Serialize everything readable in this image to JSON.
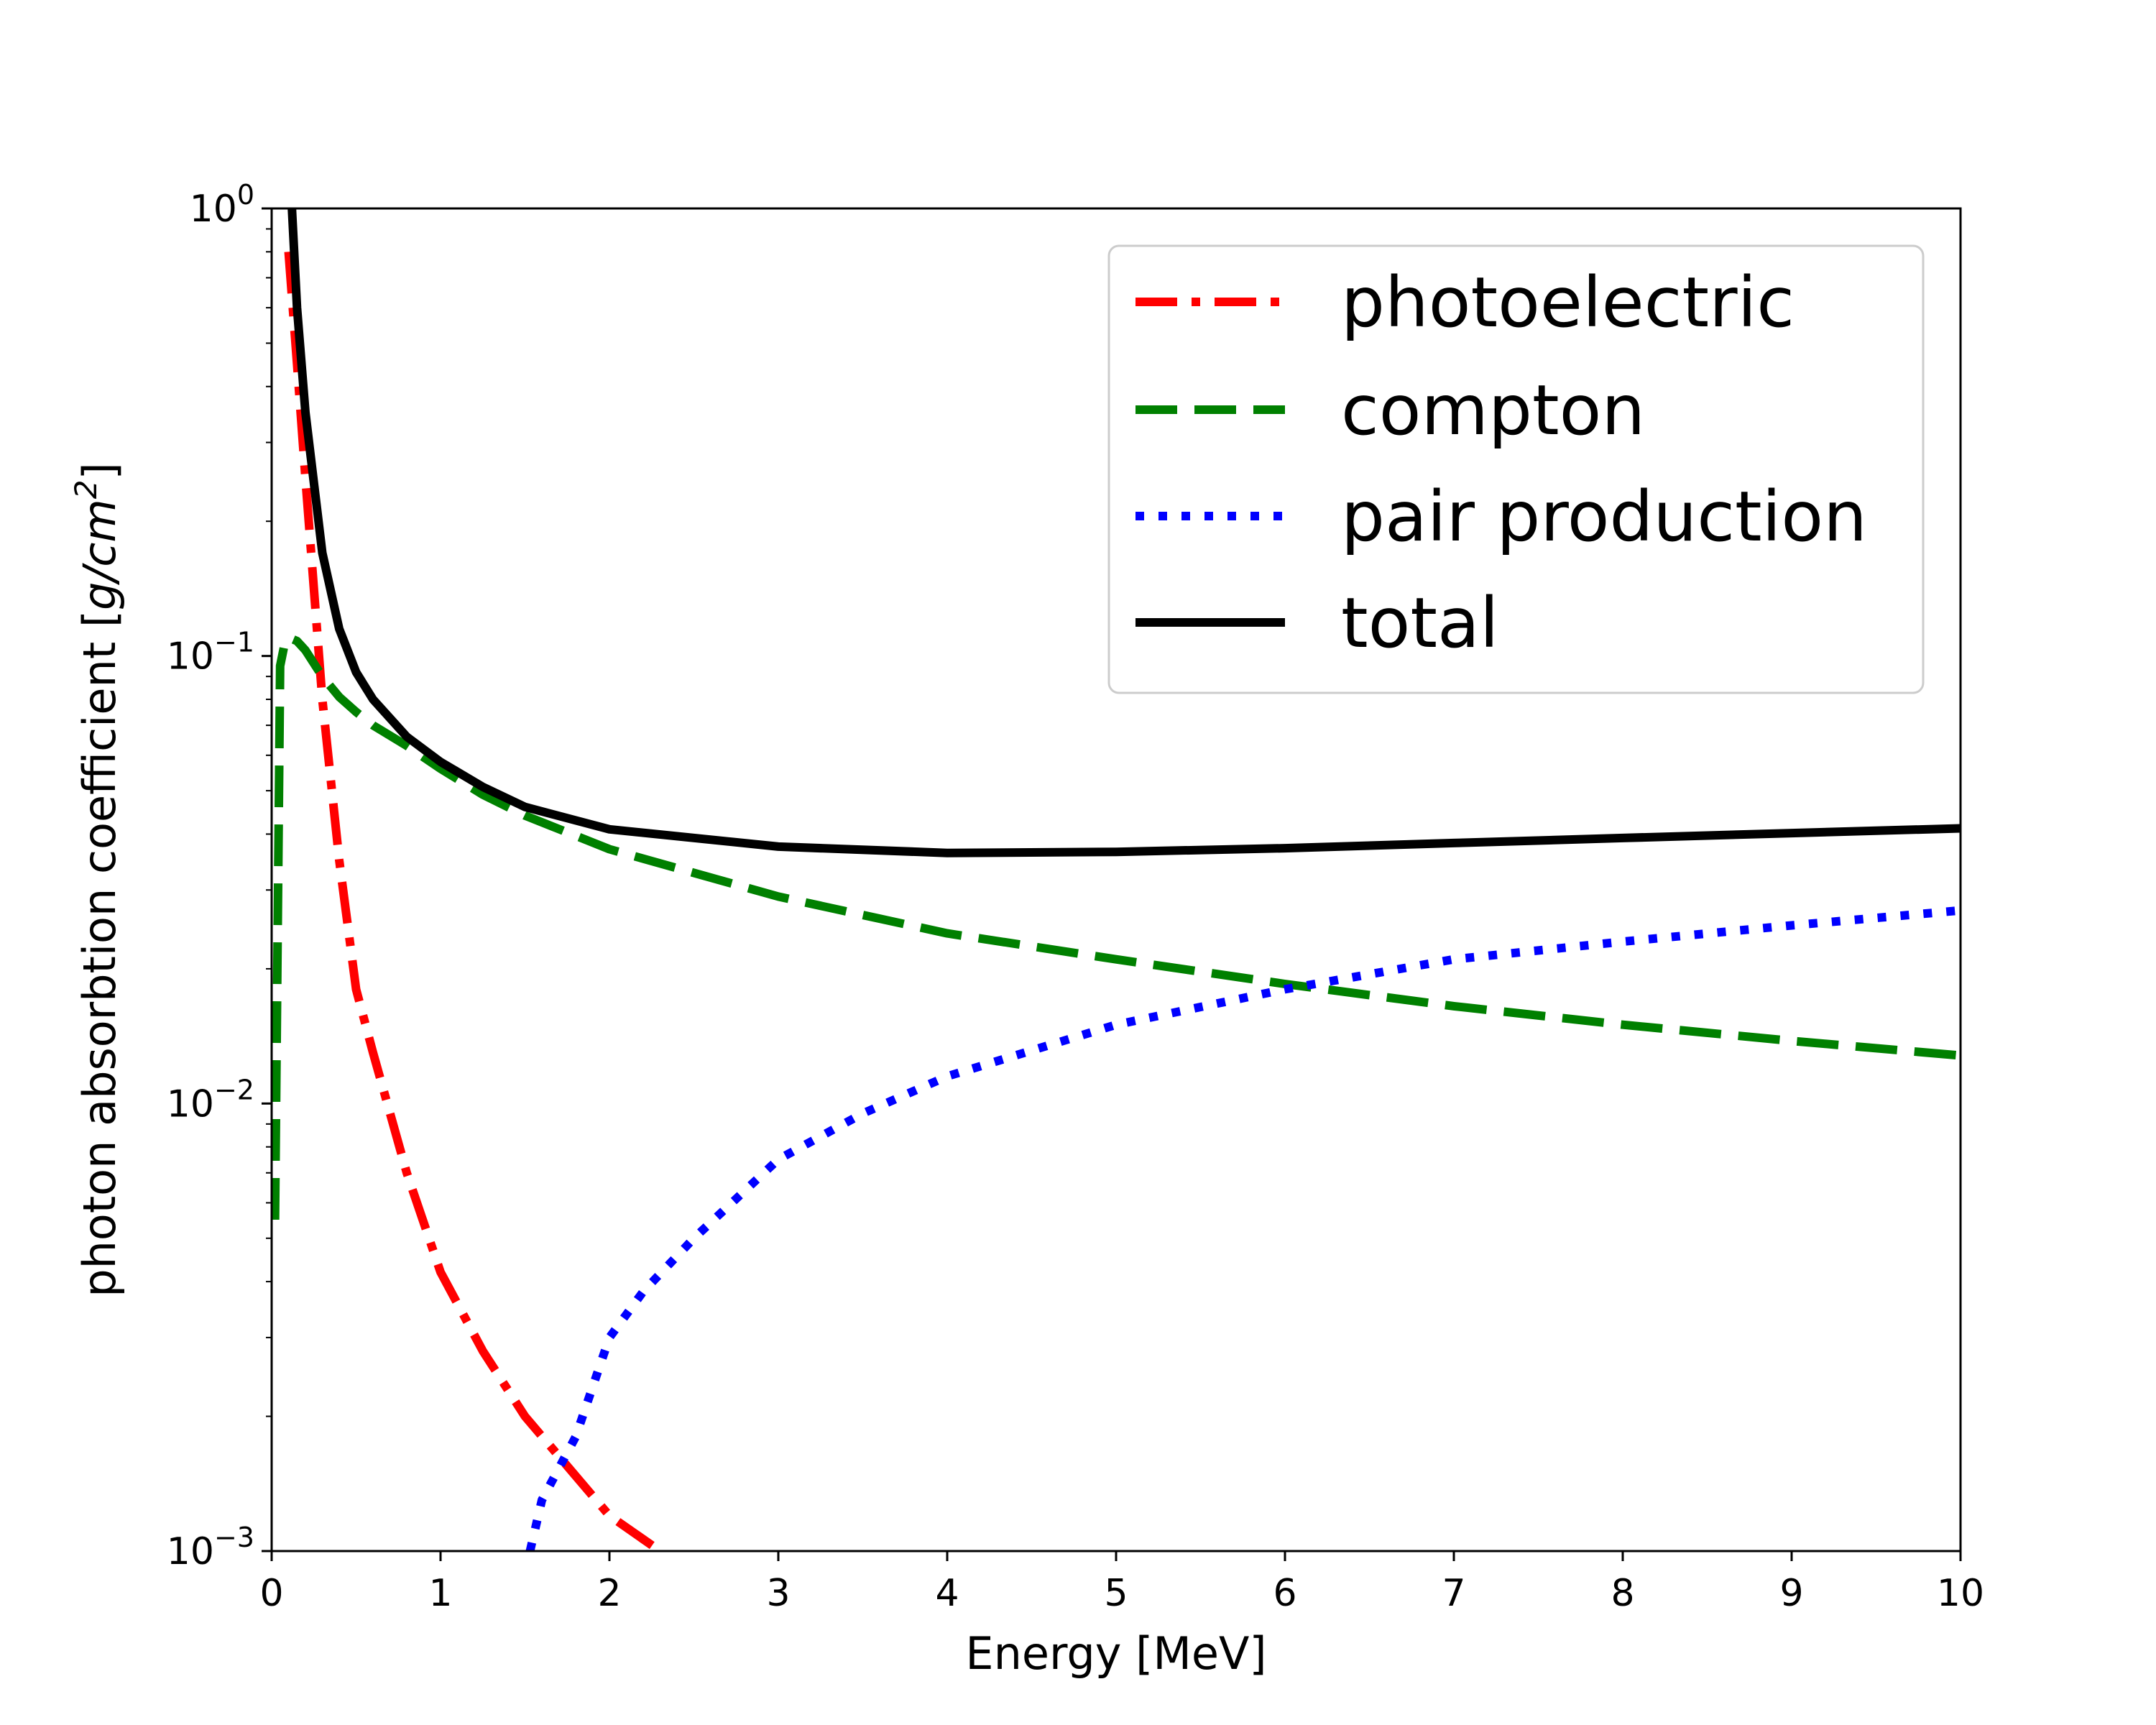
{
  "chart_data": {
    "type": "line",
    "xlabel": "Energy [MeV]",
    "ylabel": "photon absorbtion coefficient [g/cm²]",
    "ylabel_prefix": "photon absorbtion coefficient [",
    "ylabel_unit": "g/cm",
    "ylabel_exp": "2",
    "ylabel_suffix": "]",
    "xlim": [
      0,
      10
    ],
    "ylim": [
      0.001,
      1
    ],
    "yscale": "log",
    "grid": false,
    "legend_position": "top-right",
    "x_ticks": [
      "0",
      "1",
      "2",
      "3",
      "4",
      "5",
      "6",
      "7",
      "8",
      "9",
      "10"
    ],
    "y_ticks": [
      {
        "base": "10",
        "exp": "0"
      },
      {
        "base": "10",
        "exp": "−1"
      },
      {
        "base": "10",
        "exp": "−2"
      },
      {
        "base": "10",
        "exp": "−3"
      }
    ],
    "series": [
      {
        "name": "photoelectric",
        "color": "#ff0000",
        "style": "dashdot",
        "x": [
          0.1,
          0.15,
          0.2,
          0.3,
          0.4,
          0.5,
          0.6,
          0.8,
          1.0,
          1.25,
          1.5,
          2.0,
          2.3
        ],
        "y": [
          0.8,
          0.45,
          0.25,
          0.08,
          0.035,
          0.018,
          0.013,
          0.007,
          0.0042,
          0.0028,
          0.002,
          0.0012,
          0.001
        ]
      },
      {
        "name": "compton",
        "color": "#008000",
        "style": "dashed",
        "x": [
          0.02,
          0.05,
          0.08,
          0.1,
          0.15,
          0.2,
          0.3,
          0.4,
          0.5,
          0.6,
          0.8,
          1.0,
          1.25,
          1.5,
          2.0,
          3.0,
          4.0,
          5.0,
          6.0,
          7.0,
          8.0,
          9.0,
          10.0
        ],
        "y": [
          0.0055,
          0.095,
          0.108,
          0.11,
          0.108,
          0.103,
          0.09,
          0.081,
          0.075,
          0.07,
          0.063,
          0.056,
          0.049,
          0.044,
          0.037,
          0.029,
          0.024,
          0.021,
          0.0185,
          0.0165,
          0.015,
          0.0138,
          0.0128
        ]
      },
      {
        "name": "pair production",
        "color": "#0000ff",
        "style": "dotted",
        "x": [
          1.53,
          1.6,
          1.8,
          2.0,
          2.2,
          2.5,
          3.0,
          3.5,
          4.0,
          5.0,
          6.0,
          7.0,
          8.0,
          9.0,
          10.0
        ],
        "y": [
          0.001,
          0.0013,
          0.0018,
          0.003,
          0.0038,
          0.005,
          0.0075,
          0.0095,
          0.0115,
          0.015,
          0.018,
          0.021,
          0.023,
          0.025,
          0.027
        ]
      },
      {
        "name": "total",
        "color": "#000000",
        "style": "solid",
        "x": [
          0.12,
          0.15,
          0.2,
          0.3,
          0.4,
          0.5,
          0.6,
          0.8,
          1.0,
          1.25,
          1.5,
          2.0,
          3.0,
          4.0,
          5.0,
          6.0,
          7.0,
          8.0,
          9.0,
          10.0
        ],
        "y": [
          1.0,
          0.6,
          0.35,
          0.17,
          0.115,
          0.092,
          0.08,
          0.066,
          0.058,
          0.051,
          0.046,
          0.041,
          0.0375,
          0.0363,
          0.0365,
          0.0372,
          0.0382,
          0.0392,
          0.0402,
          0.0412
        ]
      }
    ]
  }
}
